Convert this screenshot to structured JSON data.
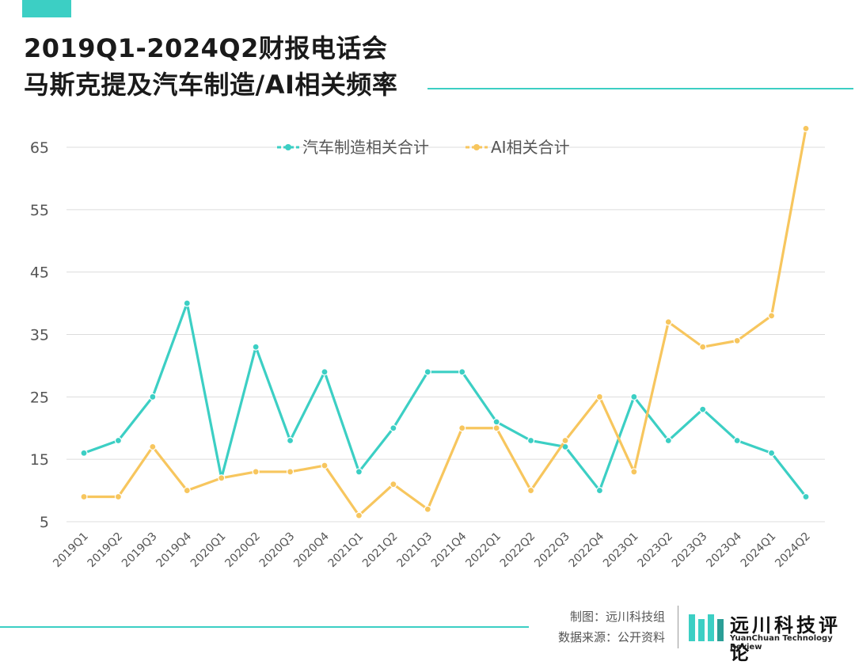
{
  "header": {
    "title_line1": "2019Q1-2024Q2财报电话会",
    "title_line2": "马斯克提及汽车制造/AI相关频率"
  },
  "footer": {
    "made_by": "制图：远川科技组",
    "source": "数据来源：公开资料",
    "brand_name": "远川科技评论",
    "brand_sub": "YuanChuan Technology Review"
  },
  "colors": {
    "accent": "#3ccfc4",
    "series_auto": "#3ccfc4",
    "series_ai": "#f7c65e",
    "grid": "#dcdcdc",
    "brand_logo_bars": [
      "#3ccfc4",
      "#3ccfc4",
      "#3ccfc4",
      "#2a9e96"
    ]
  },
  "chart_data": {
    "type": "line",
    "title": "",
    "xlabel": "",
    "ylabel": "",
    "categories": [
      "2019Q1",
      "2019Q2",
      "2019Q3",
      "2019Q4",
      "2020Q1",
      "2020Q2",
      "2020Q3",
      "2020Q4",
      "2021Q1",
      "2021Q2",
      "2021Q3",
      "2021Q4",
      "2022Q1",
      "2022Q2",
      "2022Q3",
      "2022Q4",
      "2023Q1",
      "2023Q2",
      "2023Q3",
      "2023Q4",
      "2024Q1",
      "2024Q2"
    ],
    "series": [
      {
        "name": "汽车制造相关合计",
        "color": "#3ccfc4",
        "values": [
          16,
          18,
          25,
          40,
          12,
          33,
          18,
          29,
          13,
          20,
          29,
          29,
          21,
          18,
          17,
          10,
          25,
          18,
          23,
          18,
          16,
          9
        ]
      },
      {
        "name": "AI相关合计",
        "color": "#f7c65e",
        "values": [
          9,
          9,
          17,
          10,
          12,
          13,
          13,
          14,
          6,
          11,
          7,
          20,
          20,
          10,
          18,
          25,
          13,
          37,
          33,
          34,
          38,
          68
        ]
      }
    ],
    "yticks": [
      5,
      15,
      25,
      35,
      45,
      55,
      65
    ],
    "ylim": [
      5,
      68
    ],
    "grid": true,
    "legend_position": "top-center"
  }
}
